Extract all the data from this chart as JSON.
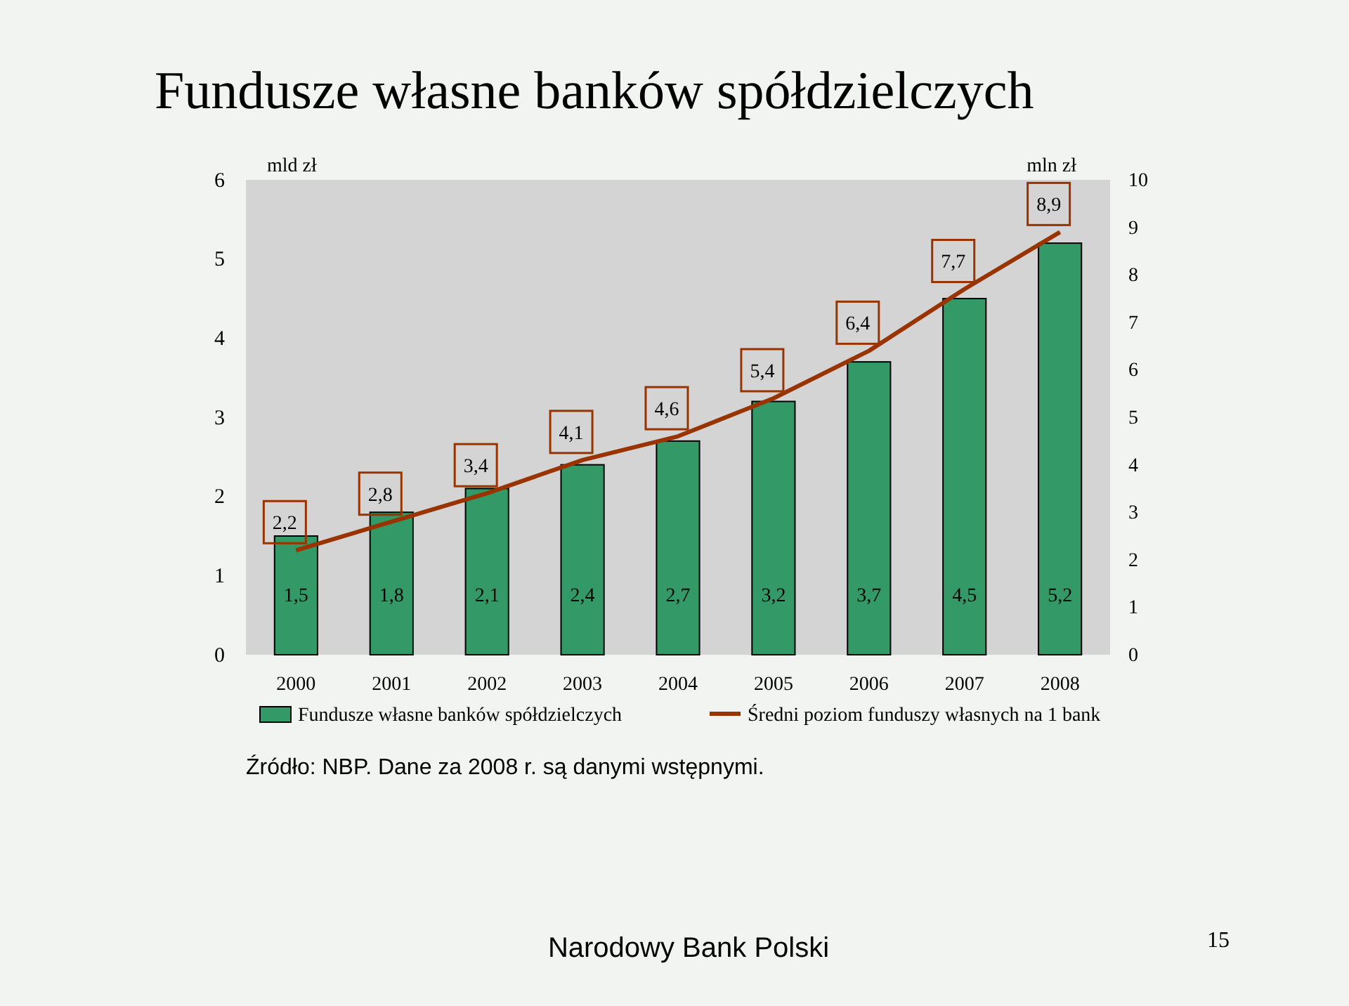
{
  "chart_data": {
    "type": "bar",
    "title": "Fundusze własne banków spółdzielczych",
    "ylabel": "mld zł",
    "y2label": "mln zł",
    "categories": [
      "2000",
      "2001",
      "2002",
      "2003",
      "2004",
      "2005",
      "2006",
      "2007",
      "2008"
    ],
    "series": [
      {
        "name": "Fundusze własne banków spółdzielczych",
        "color": "#339966",
        "values": [
          1.5,
          1.8,
          2.1,
          2.4,
          2.7,
          3.2,
          3.7,
          4.5,
          5.2
        ],
        "value_labels": [
          "1,5",
          "1,8",
          "2,1",
          "2,4",
          "2,7",
          "3,2",
          "3,7",
          "4,5",
          "5,2"
        ]
      },
      {
        "name": "Średni poziom funduszy własnych na 1 bank",
        "type": "line",
        "axis": "y2",
        "color": "#993300",
        "values": [
          2.2,
          2.8,
          3.4,
          4.1,
          4.6,
          5.4,
          6.4,
          7.7,
          8.9
        ],
        "value_labels": [
          "2,2",
          "2,8",
          "3,4",
          "4,1",
          "4,6",
          "5,4",
          "6,4",
          "7,7",
          "8,9"
        ]
      }
    ],
    "ylim": [
      0,
      6
    ],
    "yticks": [
      0,
      1,
      2,
      3,
      4,
      5,
      6
    ],
    "y2lim": [
      0,
      10
    ],
    "y2ticks": [
      0,
      1,
      2,
      3,
      4,
      5,
      6,
      7,
      8,
      9,
      10
    ],
    "legend": "bottom",
    "marker": "none",
    "line_style": "solid",
    "annotations": [
      "Źródło: NBP. Dane za 2008 r. są danymi wstępnymi.",
      "Narodowy Bank Polski",
      "15"
    ]
  }
}
